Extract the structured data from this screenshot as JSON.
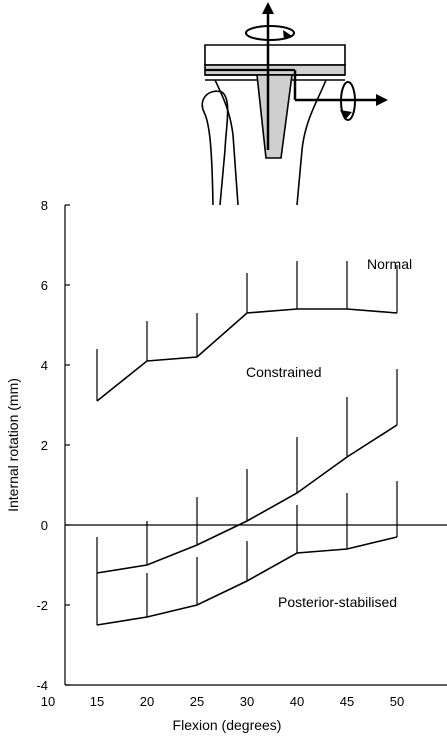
{
  "chart_data": {
    "type": "line",
    "xlabel": "Flexion (degrees)",
    "ylabel": "Internal rotation (mm)",
    "xlim": [
      10,
      55
    ],
    "ylim": [
      -4,
      8
    ],
    "x_ticks": [
      10,
      15,
      20,
      25,
      30,
      40,
      45,
      50
    ],
    "y_ticks": [
      -4,
      -2,
      0,
      2,
      4,
      6,
      8
    ],
    "grid": false,
    "zero_line": true,
    "error_bars": "upper for upper curves, lower-biased for lower curves",
    "series": [
      {
        "name": "Normal",
        "x": [
          15,
          20,
          25,
          30,
          40,
          45,
          50
        ],
        "y": [
          3.1,
          4.1,
          4.2,
          5.3,
          5.4,
          5.4,
          5.3
        ],
        "err_upper": [
          1.3,
          1.0,
          1.1,
          1.0,
          1.2,
          1.2,
          1.2
        ]
      },
      {
        "name": "Constrained",
        "x": [
          15,
          20,
          25,
          30,
          40,
          45,
          50
        ],
        "y": [
          -1.2,
          -1.0,
          -0.5,
          0.1,
          0.8,
          1.7,
          2.5
        ],
        "err_upper": [
          0.9,
          1.1,
          1.2,
          1.3,
          1.4,
          1.5,
          1.4
        ]
      },
      {
        "name": "Posterior-stabilised",
        "x": [
          15,
          20,
          25,
          30,
          40,
          45,
          50
        ],
        "y": [
          -2.5,
          -2.3,
          -2.0,
          -1.4,
          -0.7,
          -0.6,
          -0.3
        ],
        "err_upper": [
          1.3,
          1.1,
          1.2,
          1.0,
          1.2,
          1.4,
          1.4
        ]
      }
    ],
    "annotations": [
      "Normal",
      "Constrained",
      "Posterior-stabilised"
    ]
  },
  "diagram": {
    "description_icon": "knee-implant-rotation-axes-icon"
  }
}
